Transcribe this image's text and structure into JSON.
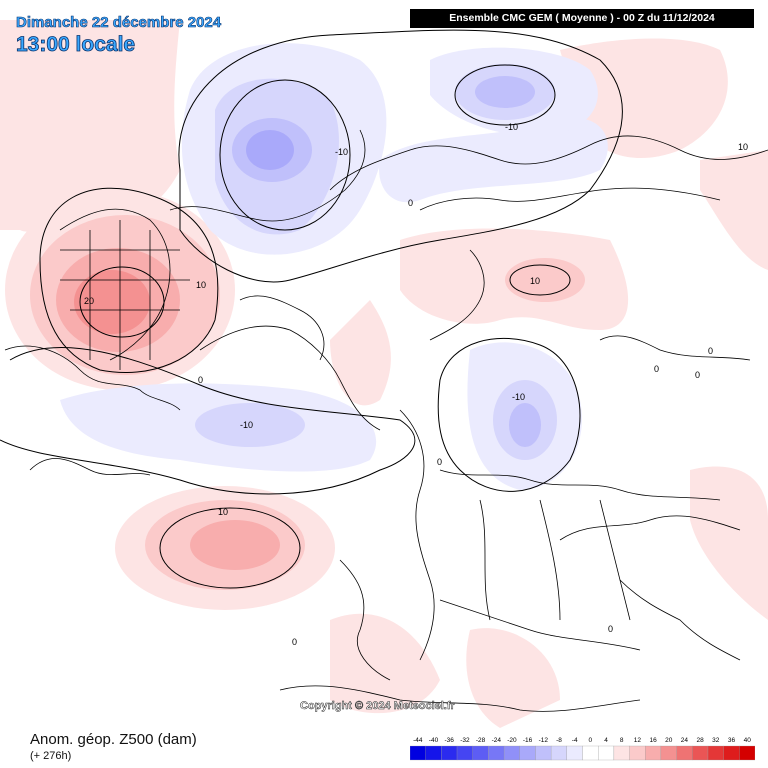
{
  "header": {
    "date_title": "Dimanche 22 décembre 2024",
    "time_title": "13:00 locale",
    "model_title": "Ensemble CMC GEM  ( Moyenne )  - 00 Z du 11/12/2024"
  },
  "footer": {
    "variable_title": "Anom. géop. Z500 (dam)",
    "lead_time": "(+ 276h)",
    "copyright": "Copyright © 2024 Meteociel.fr"
  },
  "legend": {
    "ticks": [
      "-44",
      "-40",
      "-36",
      "-32",
      "-28",
      "-24",
      "-20",
      "-16",
      "-12",
      "-8",
      "-4",
      "0",
      "4",
      "8",
      "12",
      "16",
      "20",
      "24",
      "28",
      "32",
      "36",
      "40"
    ],
    "colors": [
      "#0000e0",
      "#1515ea",
      "#2b2bef",
      "#4545f2",
      "#5d5df4",
      "#7777f6",
      "#9090f8",
      "#a9a9fa",
      "#c0c0fb",
      "#d6d6fc",
      "#ebebfe",
      "#ffffff",
      "#ffffff",
      "#fde4e4",
      "#fbcaca",
      "#f8adad",
      "#f49191",
      "#ef7373",
      "#ea5555",
      "#e43737",
      "#de1c1c",
      "#d40000"
    ]
  },
  "map": {
    "contour_labels": [
      "-10",
      "-10",
      "-10",
      "0",
      "10",
      "20",
      "10",
      "0",
      "-10",
      "10",
      "0",
      "10",
      "0",
      "0",
      "0",
      "0",
      "0"
    ],
    "colors": {
      "pos_light": "#fde4e4",
      "pos_mid": "#fbcaca",
      "pos_strong": "#f49191",
      "neg_light": "#ebebfe",
      "neg_mid": "#d6d6fc",
      "neg_strong": "#a9a9fa"
    }
  }
}
